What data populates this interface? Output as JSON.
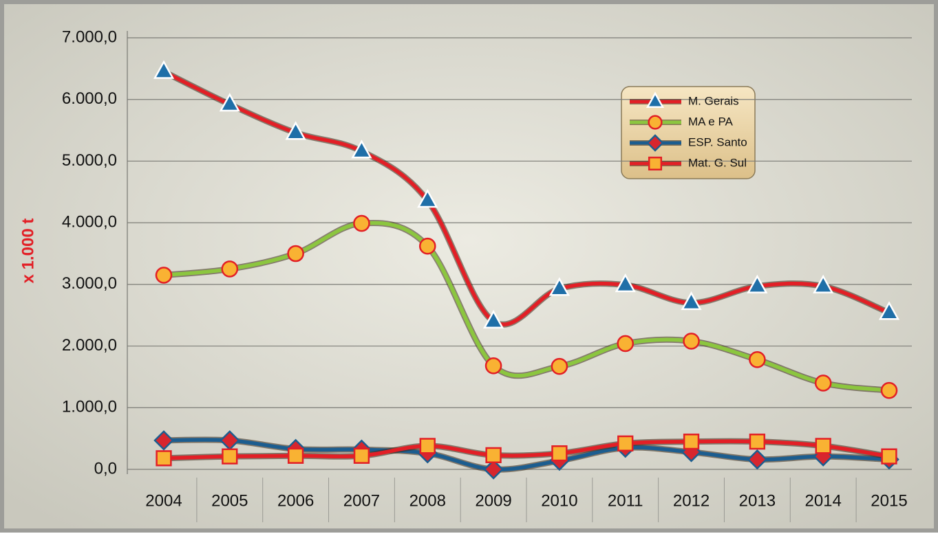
{
  "chart_data": {
    "type": "line",
    "y_label": "x 1.000 t",
    "categories": [
      "2004",
      "2005",
      "2006",
      "2007",
      "2008",
      "2009",
      "2010",
      "2011",
      "2012",
      "2013",
      "2014",
      "2015"
    ],
    "series": [
      {
        "name": "M. Gerais",
        "color": "#e21f26",
        "marker": "triangle",
        "marker_color": "#1f6fa8",
        "values": [
          6450,
          5920,
          5460,
          5160,
          4360,
          2400,
          2930,
          2990,
          2700,
          2970,
          2970,
          2540
        ]
      },
      {
        "name": "MA e PA",
        "color": "#8cc63f",
        "marker": "circle",
        "marker_color": "#f9b233",
        "values": [
          3150,
          3250,
          3500,
          3990,
          3620,
          1680,
          1670,
          2040,
          2080,
          1780,
          1400,
          1280
        ]
      },
      {
        "name": "ESP. Santo",
        "color": "#1c5d8f",
        "marker": "diamond",
        "marker_color": "#d7262e",
        "values": [
          470,
          470,
          330,
          320,
          260,
          0,
          140,
          350,
          280,
          160,
          210,
          160
        ]
      },
      {
        "name": "Mat. G. Sul",
        "color": "#e21f26",
        "marker": "square",
        "marker_color": "#f9b233",
        "values": [
          180,
          210,
          220,
          220,
          380,
          230,
          260,
          420,
          450,
          450,
          380,
          210
        ]
      }
    ],
    "ylim": [
      0,
      7000
    ],
    "yticks": [
      {
        "value": 0,
        "label": "0,0"
      },
      {
        "value": 1000,
        "label": "1.000,0"
      },
      {
        "value": 2000,
        "label": "2.000,0"
      },
      {
        "value": 3000,
        "label": "3.000,0"
      },
      {
        "value": 4000,
        "label": "4.000,0"
      },
      {
        "value": 5000,
        "label": "5.000,0"
      },
      {
        "value": 6000,
        "label": "6.000,0"
      },
      {
        "value": 7000,
        "label": "7.000,0"
      }
    ],
    "grid": true
  }
}
